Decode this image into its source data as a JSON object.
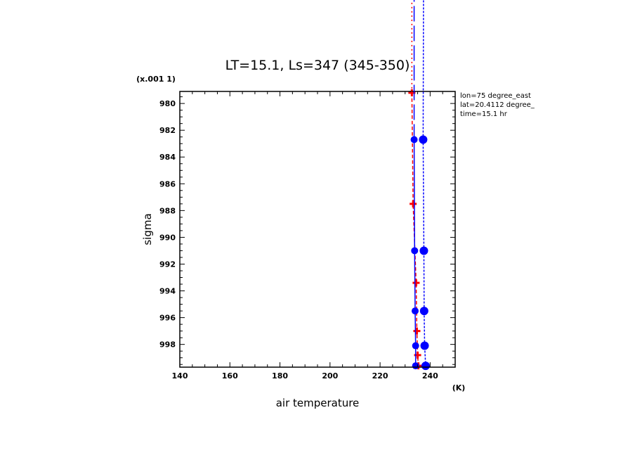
{
  "chart_data": {
    "type": "line",
    "title": "LT=15.1, Ls=347 (345-350)",
    "xlabel": "air temperature",
    "xunit": "(K)",
    "ylabel": "sigma",
    "yunit": "(x.001 1)",
    "xlim": [
      140,
      250
    ],
    "ylim": [
      979.1,
      999.7
    ],
    "y_inverted": true,
    "xticks": [
      140,
      160,
      180,
      200,
      220,
      240
    ],
    "yticks": [
      980,
      982,
      984,
      986,
      988,
      990,
      992,
      994,
      996,
      998
    ],
    "info": [
      "lon=75 degree_east",
      "lat=20.4112 degree_",
      "time=15.1 hr"
    ],
    "series": [
      {
        "color": "#ff0000",
        "line": "dashed",
        "marker": "plus",
        "points": [
          [
            232.7,
            979.2
          ],
          [
            233.2,
            987.5
          ],
          [
            234.4,
            993.4
          ],
          [
            234.7,
            997.0
          ],
          [
            235.0,
            998.8
          ],
          [
            235.3,
            999.6
          ]
        ]
      },
      {
        "color": "#0000ff",
        "line": "solid",
        "marker": "circle",
        "points": [
          [
            233.6,
            982.7
          ],
          [
            233.8,
            991.0
          ],
          [
            234.0,
            995.5
          ],
          [
            234.2,
            998.1
          ],
          [
            234.2,
            999.6
          ]
        ]
      },
      {
        "color": "#0000ff",
        "line": "dashed",
        "marker": "circle-large",
        "points": [
          [
            237.2,
            982.7
          ],
          [
            237.5,
            991.0
          ],
          [
            237.6,
            995.5
          ],
          [
            237.8,
            998.1
          ],
          [
            238.2,
            999.6
          ]
        ]
      }
    ]
  }
}
